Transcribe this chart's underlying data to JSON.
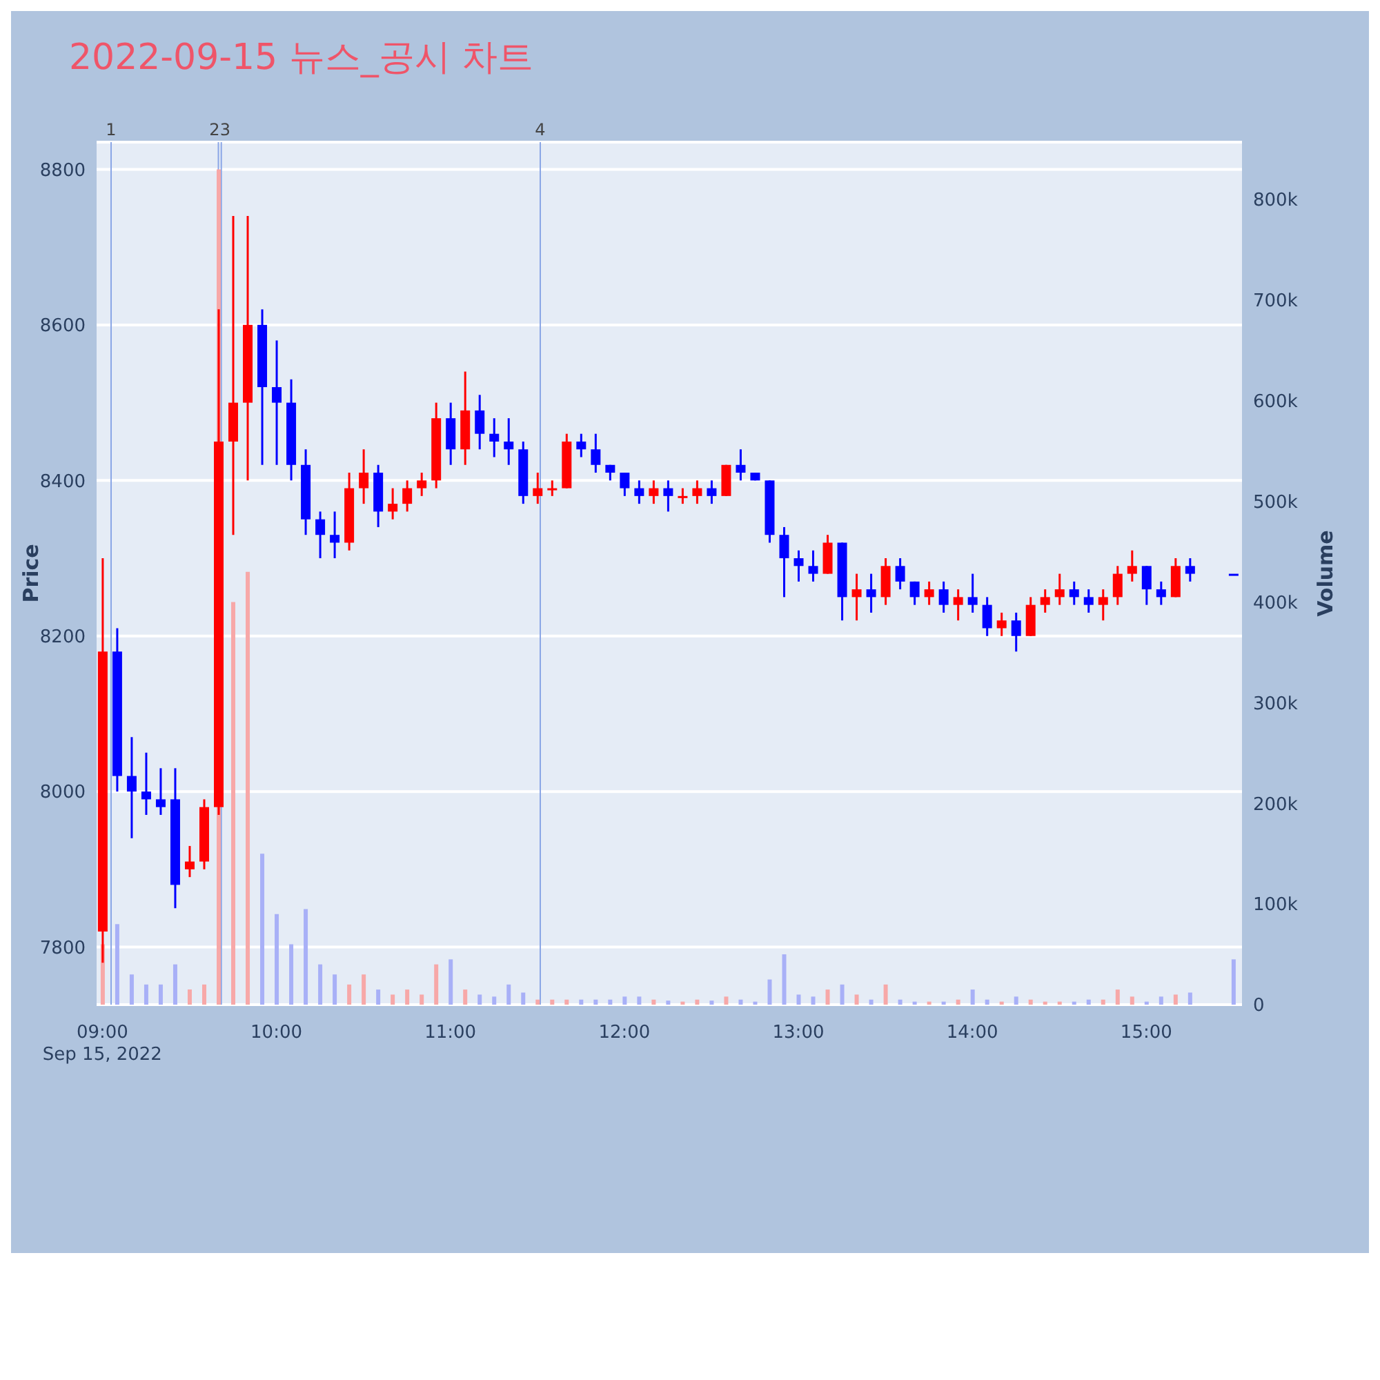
{
  "chart_data": {
    "type": "candlestick",
    "title": "2022-09-15 뉴스_공시 차트",
    "ylabel": "Price",
    "y2label": "Volume",
    "x": [
      "2022-09-15T09:00",
      "2022-09-15T09:05",
      "2022-09-15T09:10",
      "2022-09-15T09:15",
      "2022-09-15T09:20",
      "2022-09-15T09:25",
      "2022-09-15T09:30",
      "2022-09-15T09:35",
      "2022-09-15T09:40",
      "2022-09-15T09:45",
      "2022-09-15T09:50",
      "2022-09-15T09:55",
      "2022-09-15T10:00",
      "2022-09-15T10:05",
      "2022-09-15T10:10",
      "2022-09-15T10:15",
      "2022-09-15T10:20",
      "2022-09-15T10:25",
      "2022-09-15T10:30",
      "2022-09-15T10:35",
      "2022-09-15T10:40",
      "2022-09-15T10:45",
      "2022-09-15T10:50",
      "2022-09-15T10:55",
      "2022-09-15T11:00",
      "2022-09-15T11:05",
      "2022-09-15T11:10",
      "2022-09-15T11:15",
      "2022-09-15T11:20",
      "2022-09-15T11:25",
      "2022-09-15T11:30",
      "2022-09-15T11:35",
      "2022-09-15T11:40",
      "2022-09-15T11:45",
      "2022-09-15T11:50",
      "2022-09-15T11:55",
      "2022-09-15T12:00",
      "2022-09-15T12:05",
      "2022-09-15T12:10",
      "2022-09-15T12:15",
      "2022-09-15T12:20",
      "2022-09-15T12:25",
      "2022-09-15T12:30",
      "2022-09-15T12:35",
      "2022-09-15T12:40",
      "2022-09-15T12:45",
      "2022-09-15T12:50",
      "2022-09-15T12:55",
      "2022-09-15T13:00",
      "2022-09-15T13:05",
      "2022-09-15T13:10",
      "2022-09-15T13:15",
      "2022-09-15T13:20",
      "2022-09-15T13:25",
      "2022-09-15T13:30",
      "2022-09-15T13:35",
      "2022-09-15T13:40",
      "2022-09-15T13:45",
      "2022-09-15T13:50",
      "2022-09-15T13:55",
      "2022-09-15T14:00",
      "2022-09-15T14:05",
      "2022-09-15T14:10",
      "2022-09-15T14:15",
      "2022-09-15T14:20",
      "2022-09-15T14:25",
      "2022-09-15T14:30",
      "2022-09-15T14:35",
      "2022-09-15T14:40",
      "2022-09-15T14:45",
      "2022-09-15T14:50",
      "2022-09-15T14:55",
      "2022-09-15T15:00",
      "2022-09-15T15:05",
      "2022-09-15T15:10",
      "2022-09-15T15:15",
      "2022-09-15T15:30"
    ],
    "ohlc": [
      [
        7820,
        8300,
        7780,
        8180
      ],
      [
        8180,
        8210,
        8000,
        8020
      ],
      [
        8020,
        8070,
        7940,
        8000
      ],
      [
        8000,
        8050,
        7970,
        7990
      ],
      [
        7990,
        8030,
        7970,
        7980
      ],
      [
        7990,
        8030,
        7850,
        7880
      ],
      [
        7900,
        7930,
        7890,
        7910
      ],
      [
        7910,
        7990,
        7900,
        7980
      ],
      [
        7980,
        8620,
        7970,
        8450
      ],
      [
        8450,
        8740,
        8330,
        8500
      ],
      [
        8500,
        8740,
        8400,
        8600
      ],
      [
        8600,
        8620,
        8420,
        8520
      ],
      [
        8520,
        8580,
        8420,
        8500
      ],
      [
        8500,
        8530,
        8400,
        8420
      ],
      [
        8420,
        8440,
        8330,
        8350
      ],
      [
        8350,
        8360,
        8300,
        8330
      ],
      [
        8330,
        8360,
        8300,
        8320
      ],
      [
        8320,
        8410,
        8310,
        8390
      ],
      [
        8390,
        8440,
        8370,
        8410
      ],
      [
        8410,
        8420,
        8340,
        8360
      ],
      [
        8360,
        8390,
        8350,
        8370
      ],
      [
        8370,
        8400,
        8360,
        8390
      ],
      [
        8390,
        8410,
        8380,
        8400
      ],
      [
        8400,
        8500,
        8390,
        8480
      ],
      [
        8480,
        8500,
        8420,
        8440
      ],
      [
        8440,
        8540,
        8420,
        8490
      ],
      [
        8490,
        8510,
        8440,
        8460
      ],
      [
        8460,
        8480,
        8430,
        8450
      ],
      [
        8450,
        8480,
        8420,
        8440
      ],
      [
        8440,
        8450,
        8370,
        8380
      ],
      [
        8380,
        8410,
        8370,
        8390
      ],
      [
        8390,
        8400,
        8380,
        8390
      ],
      [
        8390,
        8460,
        8390,
        8450
      ],
      [
        8450,
        8460,
        8430,
        8440
      ],
      [
        8440,
        8460,
        8410,
        8420
      ],
      [
        8420,
        8420,
        8400,
        8410
      ],
      [
        8410,
        8410,
        8380,
        8390
      ],
      [
        8390,
        8400,
        8370,
        8380
      ],
      [
        8380,
        8400,
        8370,
        8390
      ],
      [
        8390,
        8400,
        8360,
        8380
      ],
      [
        8380,
        8390,
        8370,
        8380
      ],
      [
        8380,
        8400,
        8370,
        8390
      ],
      [
        8390,
        8400,
        8370,
        8380
      ],
      [
        8380,
        8420,
        8380,
        8420
      ],
      [
        8420,
        8440,
        8400,
        8410
      ],
      [
        8410,
        8410,
        8400,
        8400
      ],
      [
        8400,
        8400,
        8320,
        8330
      ],
      [
        8330,
        8340,
        8250,
        8300
      ],
      [
        8300,
        8310,
        8270,
        8290
      ],
      [
        8290,
        8310,
        8270,
        8280
      ],
      [
        8280,
        8330,
        8280,
        8320
      ],
      [
        8320,
        8320,
        8220,
        8250
      ],
      [
        8250,
        8280,
        8220,
        8260
      ],
      [
        8260,
        8280,
        8230,
        8250
      ],
      [
        8250,
        8300,
        8240,
        8290
      ],
      [
        8290,
        8300,
        8260,
        8270
      ],
      [
        8270,
        8270,
        8240,
        8250
      ],
      [
        8250,
        8270,
        8240,
        8260
      ],
      [
        8260,
        8270,
        8230,
        8240
      ],
      [
        8240,
        8260,
        8220,
        8250
      ],
      [
        8250,
        8280,
        8230,
        8240
      ],
      [
        8240,
        8250,
        8200,
        8210
      ],
      [
        8210,
        8230,
        8200,
        8220
      ],
      [
        8220,
        8230,
        8180,
        8200
      ],
      [
        8200,
        8250,
        8200,
        8240
      ],
      [
        8240,
        8260,
        8230,
        8250
      ],
      [
        8250,
        8280,
        8240,
        8260
      ],
      [
        8260,
        8270,
        8240,
        8250
      ],
      [
        8250,
        8260,
        8230,
        8240
      ],
      [
        8240,
        8260,
        8220,
        8250
      ],
      [
        8250,
        8290,
        8240,
        8280
      ],
      [
        8280,
        8310,
        8270,
        8290
      ],
      [
        8290,
        8290,
        8240,
        8260
      ],
      [
        8260,
        8270,
        8240,
        8250
      ],
      [
        8250,
        8300,
        8250,
        8290
      ],
      [
        8290,
        8300,
        8270,
        8280
      ],
      [
        8280,
        8280,
        8280,
        8280
      ]
    ],
    "colors": [
      "#ff0000",
      "#0000ff",
      "#0000ff",
      "#0000ff",
      "#0000ff",
      "#0000ff",
      "#ff0000",
      "#ff0000",
      "#ff0000",
      "#ff0000",
      "#ff0000",
      "#0000ff",
      "#0000ff",
      "#0000ff",
      "#0000ff",
      "#0000ff",
      "#0000ff",
      "#ff0000",
      "#ff0000",
      "#0000ff",
      "#ff0000",
      "#ff0000",
      "#ff0000",
      "#ff0000",
      "#0000ff",
      "#ff0000",
      "#0000ff",
      "#0000ff",
      "#0000ff",
      "#0000ff",
      "#ff0000",
      "#ff0000",
      "#ff0000",
      "#0000ff",
      "#0000ff",
      "#0000ff",
      "#0000ff",
      "#0000ff",
      "#ff0000",
      "#0000ff",
      "#ff0000",
      "#ff0000",
      "#0000ff",
      "#ff0000",
      "#0000ff",
      "#0000ff",
      "#0000ff",
      "#0000ff",
      "#0000ff",
      "#0000ff",
      "#ff0000",
      "#0000ff",
      "#ff0000",
      "#0000ff",
      "#ff0000",
      "#0000ff",
      "#0000ff",
      "#ff0000",
      "#0000ff",
      "#ff0000",
      "#0000ff",
      "#0000ff",
      "#ff0000",
      "#0000ff",
      "#ff0000",
      "#ff0000",
      "#ff0000",
      "#0000ff",
      "#0000ff",
      "#ff0000",
      "#ff0000",
      "#ff0000",
      "#0000ff",
      "#0000ff",
      "#ff0000",
      "#0000ff",
      "#0000ff"
    ],
    "series": [
      {
        "type": "bar",
        "axis": "y2",
        "values": [
          60000,
          80000,
          30000,
          20000,
          20000,
          40000,
          15000,
          20000,
          830000,
          400000,
          430000,
          150000,
          90000,
          60000,
          95000,
          40000,
          30000,
          20000,
          30000,
          15000,
          10000,
          15000,
          10000,
          40000,
          45000,
          15000,
          10000,
          8000,
          20000,
          12000,
          5000,
          5000,
          5000,
          5000,
          5000,
          5000,
          8000,
          8000,
          5000,
          4000,
          3000,
          5000,
          4000,
          8000,
          5000,
          3000,
          25000,
          50000,
          10000,
          8000,
          15000,
          20000,
          10000,
          5000,
          20000,
          5000,
          3000,
          3000,
          3000,
          5000,
          15000,
          5000,
          3000,
          8000,
          5000,
          3000,
          3000,
          3000,
          5000,
          5000,
          15000,
          8000,
          3000,
          8000,
          10000,
          12000,
          45000
        ],
        "colors": [
          "#f7a8a8",
          "#a8b0f7",
          "#a8b0f7",
          "#a8b0f7",
          "#a8b0f7",
          "#a8b0f7",
          "#f7a8a8",
          "#f7a8a8",
          "#f7a8a8",
          "#f7a8a8",
          "#f7a8a8",
          "#a8b0f7",
          "#a8b0f7",
          "#a8b0f7",
          "#a8b0f7",
          "#a8b0f7",
          "#a8b0f7",
          "#f7a8a8",
          "#f7a8a8",
          "#a8b0f7",
          "#f7a8a8",
          "#f7a8a8",
          "#f7a8a8",
          "#f7a8a8",
          "#a8b0f7",
          "#f7a8a8",
          "#a8b0f7",
          "#a8b0f7",
          "#a8b0f7",
          "#a8b0f7",
          "#f7a8a8",
          "#f7a8a8",
          "#f7a8a8",
          "#a8b0f7",
          "#a8b0f7",
          "#a8b0f7",
          "#a8b0f7",
          "#a8b0f7",
          "#f7a8a8",
          "#a8b0f7",
          "#f7a8a8",
          "#f7a8a8",
          "#a8b0f7",
          "#f7a8a8",
          "#a8b0f7",
          "#a8b0f7",
          "#a8b0f7",
          "#a8b0f7",
          "#a8b0f7",
          "#a8b0f7",
          "#f7a8a8",
          "#a8b0f7",
          "#f7a8a8",
          "#a8b0f7",
          "#f7a8a8",
          "#a8b0f7",
          "#a8b0f7",
          "#f7a8a8",
          "#a8b0f7",
          "#f7a8a8",
          "#a8b0f7",
          "#a8b0f7",
          "#f7a8a8",
          "#a8b0f7",
          "#f7a8a8",
          "#f7a8a8",
          "#f7a8a8",
          "#a8b0f7",
          "#a8b0f7",
          "#f7a8a8",
          "#f7a8a8",
          "#f7a8a8",
          "#a8b0f7",
          "#a8b0f7",
          "#f7a8a8",
          "#a8b0f7",
          "#a8b0f7"
        ]
      }
    ],
    "xlim": [
      "2022-09-15T08:58",
      "2022-09-15T15:33"
    ],
    "xticks": [
      {
        "value": "2022-09-15T09:00",
        "label": "09:00\nSep 15, 2022"
      },
      {
        "value": "2022-09-15T10:00",
        "label": "10:00"
      },
      {
        "value": "2022-09-15T11:00",
        "label": "11:00"
      },
      {
        "value": "2022-09-15T12:00",
        "label": "12:00"
      },
      {
        "value": "2022-09-15T13:00",
        "label": "13:00"
      },
      {
        "value": "2022-09-15T14:00",
        "label": "14:00"
      },
      {
        "value": "2022-09-15T15:00",
        "label": "15:00"
      }
    ],
    "ylim": [
      7726,
      8835
    ],
    "yticks": [
      7800,
      8000,
      8200,
      8400,
      8600,
      8800
    ],
    "y2lim": [
      0,
      857000
    ],
    "y2ticks": [
      0,
      {
        "value": 100000,
        "label": "100k"
      },
      {
        "value": 200000,
        "label": "200k"
      },
      {
        "value": 300000,
        "label": "300k"
      },
      {
        "value": 400000,
        "label": "400k"
      },
      {
        "value": 500000,
        "label": "500k"
      },
      {
        "value": 600000,
        "label": "600k"
      },
      {
        "value": 700000,
        "label": "700k"
      },
      {
        "value": 800000,
        "label": "800k"
      }
    ],
    "ref_lines": [
      {
        "axis": "x",
        "value": "2022-09-15T09:03",
        "label": "1",
        "color": "#8aa6e6"
      },
      {
        "axis": "x",
        "value": "2022-09-15T09:40",
        "label": "2",
        "color": "#8aa6e6"
      },
      {
        "axis": "x",
        "value": "2022-09-15T09:41",
        "label": "3",
        "color": "#8aa6e6"
      },
      {
        "axis": "x",
        "value": "2022-09-15T11:31",
        "label": "4",
        "color": "#8aa6e6"
      }
    ],
    "grid": true
  }
}
